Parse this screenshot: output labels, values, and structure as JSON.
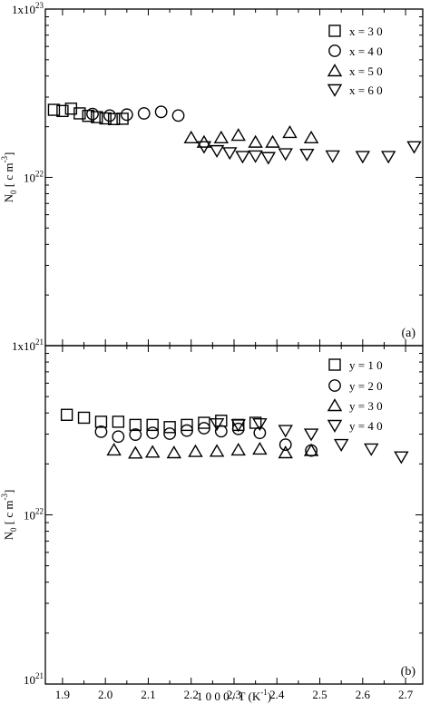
{
  "chart_data": [
    {
      "type": "scatter",
      "panel_label": "(a)",
      "ylabel": "N",
      "ylabel_sub": "0",
      "ylabel_unit": "[ c m",
      "ylabel_sup": "-3",
      "ylabel_close": "]",
      "yscale": "log",
      "ylim": [
        1e+21,
        1e+23
      ],
      "xlim": [
        1.86,
        2.74
      ],
      "y_ticks": [
        {
          "value": 1e+23,
          "label": "1x10",
          "sup": "23"
        },
        {
          "value": 1e+22,
          "label": "10",
          "sup": "22"
        },
        {
          "value": 1e+21,
          "label": "1x10",
          "sup": "21"
        }
      ],
      "legend_position": "top-right",
      "series": [
        {
          "name": "x = 3 0",
          "marker": "square",
          "x": [
            1.88,
            1.9,
            1.92,
            1.94,
            1.96,
            1.98,
            2.0,
            2.02,
            2.04
          ],
          "y": [
            2.52e+22,
            2.48e+22,
            2.56e+22,
            2.4e+22,
            2.32e+22,
            2.28e+22,
            2.24e+22,
            2.22e+22,
            2.23e+22
          ]
        },
        {
          "name": "x = 4 0",
          "marker": "circle",
          "x": [
            1.97,
            2.01,
            2.05,
            2.09,
            2.13,
            2.17
          ],
          "y": [
            2.38e+22,
            2.33e+22,
            2.36e+22,
            2.4e+22,
            2.45e+22,
            2.33e+22
          ]
        },
        {
          "name": "x = 5 0",
          "marker": "triangle-up",
          "x": [
            2.2,
            2.23,
            2.27,
            2.31,
            2.35,
            2.39,
            2.43,
            2.48
          ],
          "y": [
            1.72e+22,
            1.62e+22,
            1.72e+22,
            1.78e+22,
            1.62e+22,
            1.62e+22,
            1.85e+22,
            1.72e+22
          ]
        },
        {
          "name": "x = 6 0",
          "marker": "triangle-down",
          "x": [
            2.23,
            2.26,
            2.29,
            2.32,
            2.35,
            2.38,
            2.42,
            2.47,
            2.53,
            2.6,
            2.66,
            2.72
          ],
          "y": [
            1.52e+22,
            1.44e+22,
            1.4e+22,
            1.33e+22,
            1.34e+22,
            1.31e+22,
            1.38e+22,
            1.37e+22,
            1.34e+22,
            1.33e+22,
            1.33e+22,
            1.52e+22
          ]
        }
      ]
    },
    {
      "type": "scatter",
      "panel_label": "(b)",
      "ylabel": "N",
      "ylabel_sub": "0",
      "ylabel_unit": "[ c m",
      "ylabel_sup": "-3",
      "ylabel_close": "]",
      "xlabel": "1 0 0 0 / T (K",
      "xlabel_sup": "-1",
      "xlabel_close": ")",
      "yscale": "log",
      "ylim": [
        1e+21,
        1e+23
      ],
      "xlim": [
        1.86,
        2.74
      ],
      "x_ticks": [
        1.9,
        2.0,
        2.1,
        2.2,
        2.3,
        2.4,
        2.5,
        2.6,
        2.7
      ],
      "x_tick_labels": [
        "1.9",
        "2.0",
        "2.1",
        "2.2",
        "2.3",
        "2.4",
        "2.5",
        "2.6",
        "2.7"
      ],
      "y_ticks": [
        {
          "value": 1e+22,
          "label": "10",
          "sup": "22"
        },
        {
          "value": 1e+21,
          "label": "10",
          "sup": "21"
        }
      ],
      "legend_position": "top-right",
      "series": [
        {
          "name": "y = 1 0",
          "marker": "square",
          "x": [
            1.91,
            1.95,
            1.99,
            2.03,
            2.07,
            2.11,
            2.15,
            2.19,
            2.23,
            2.27,
            2.31,
            2.35
          ],
          "y": [
            3.9e+22,
            3.75e+22,
            3.55e+22,
            3.55e+22,
            3.4e+22,
            3.4e+22,
            3.3e+22,
            3.4e+22,
            3.5e+22,
            3.6e+22,
            3.4e+22,
            3.5e+22
          ]
        },
        {
          "name": "y = 2 0",
          "marker": "circle",
          "x": [
            1.99,
            2.03,
            2.07,
            2.11,
            2.15,
            2.19,
            2.23,
            2.27,
            2.31,
            2.36,
            2.42,
            2.48
          ],
          "y": [
            3.1e+22,
            2.9e+22,
            2.98e+22,
            3.05e+22,
            3.02e+22,
            3.15e+22,
            3.25e+22,
            3.12e+22,
            3.22e+22,
            3.05e+22,
            2.6e+22,
            2.4e+22
          ]
        },
        {
          "name": "y = 3 0",
          "marker": "triangle-up",
          "x": [
            2.02,
            2.07,
            2.11,
            2.16,
            2.21,
            2.26,
            2.31,
            2.36,
            2.42,
            2.48
          ],
          "y": [
            2.42e+22,
            2.32e+22,
            2.35e+22,
            2.33e+22,
            2.37e+22,
            2.38e+22,
            2.42e+22,
            2.45e+22,
            2.33e+22,
            2.4e+22
          ]
        },
        {
          "name": "y = 4 0",
          "marker": "triangle-down",
          "x": [
            2.26,
            2.31,
            2.36,
            2.42,
            2.48,
            2.55,
            2.62,
            2.69
          ],
          "y": [
            3.45e+22,
            3.4e+22,
            3.45e+22,
            3.15e+22,
            3e+22,
            2.6e+22,
            2.45e+22,
            2.2e+22
          ]
        }
      ]
    }
  ]
}
